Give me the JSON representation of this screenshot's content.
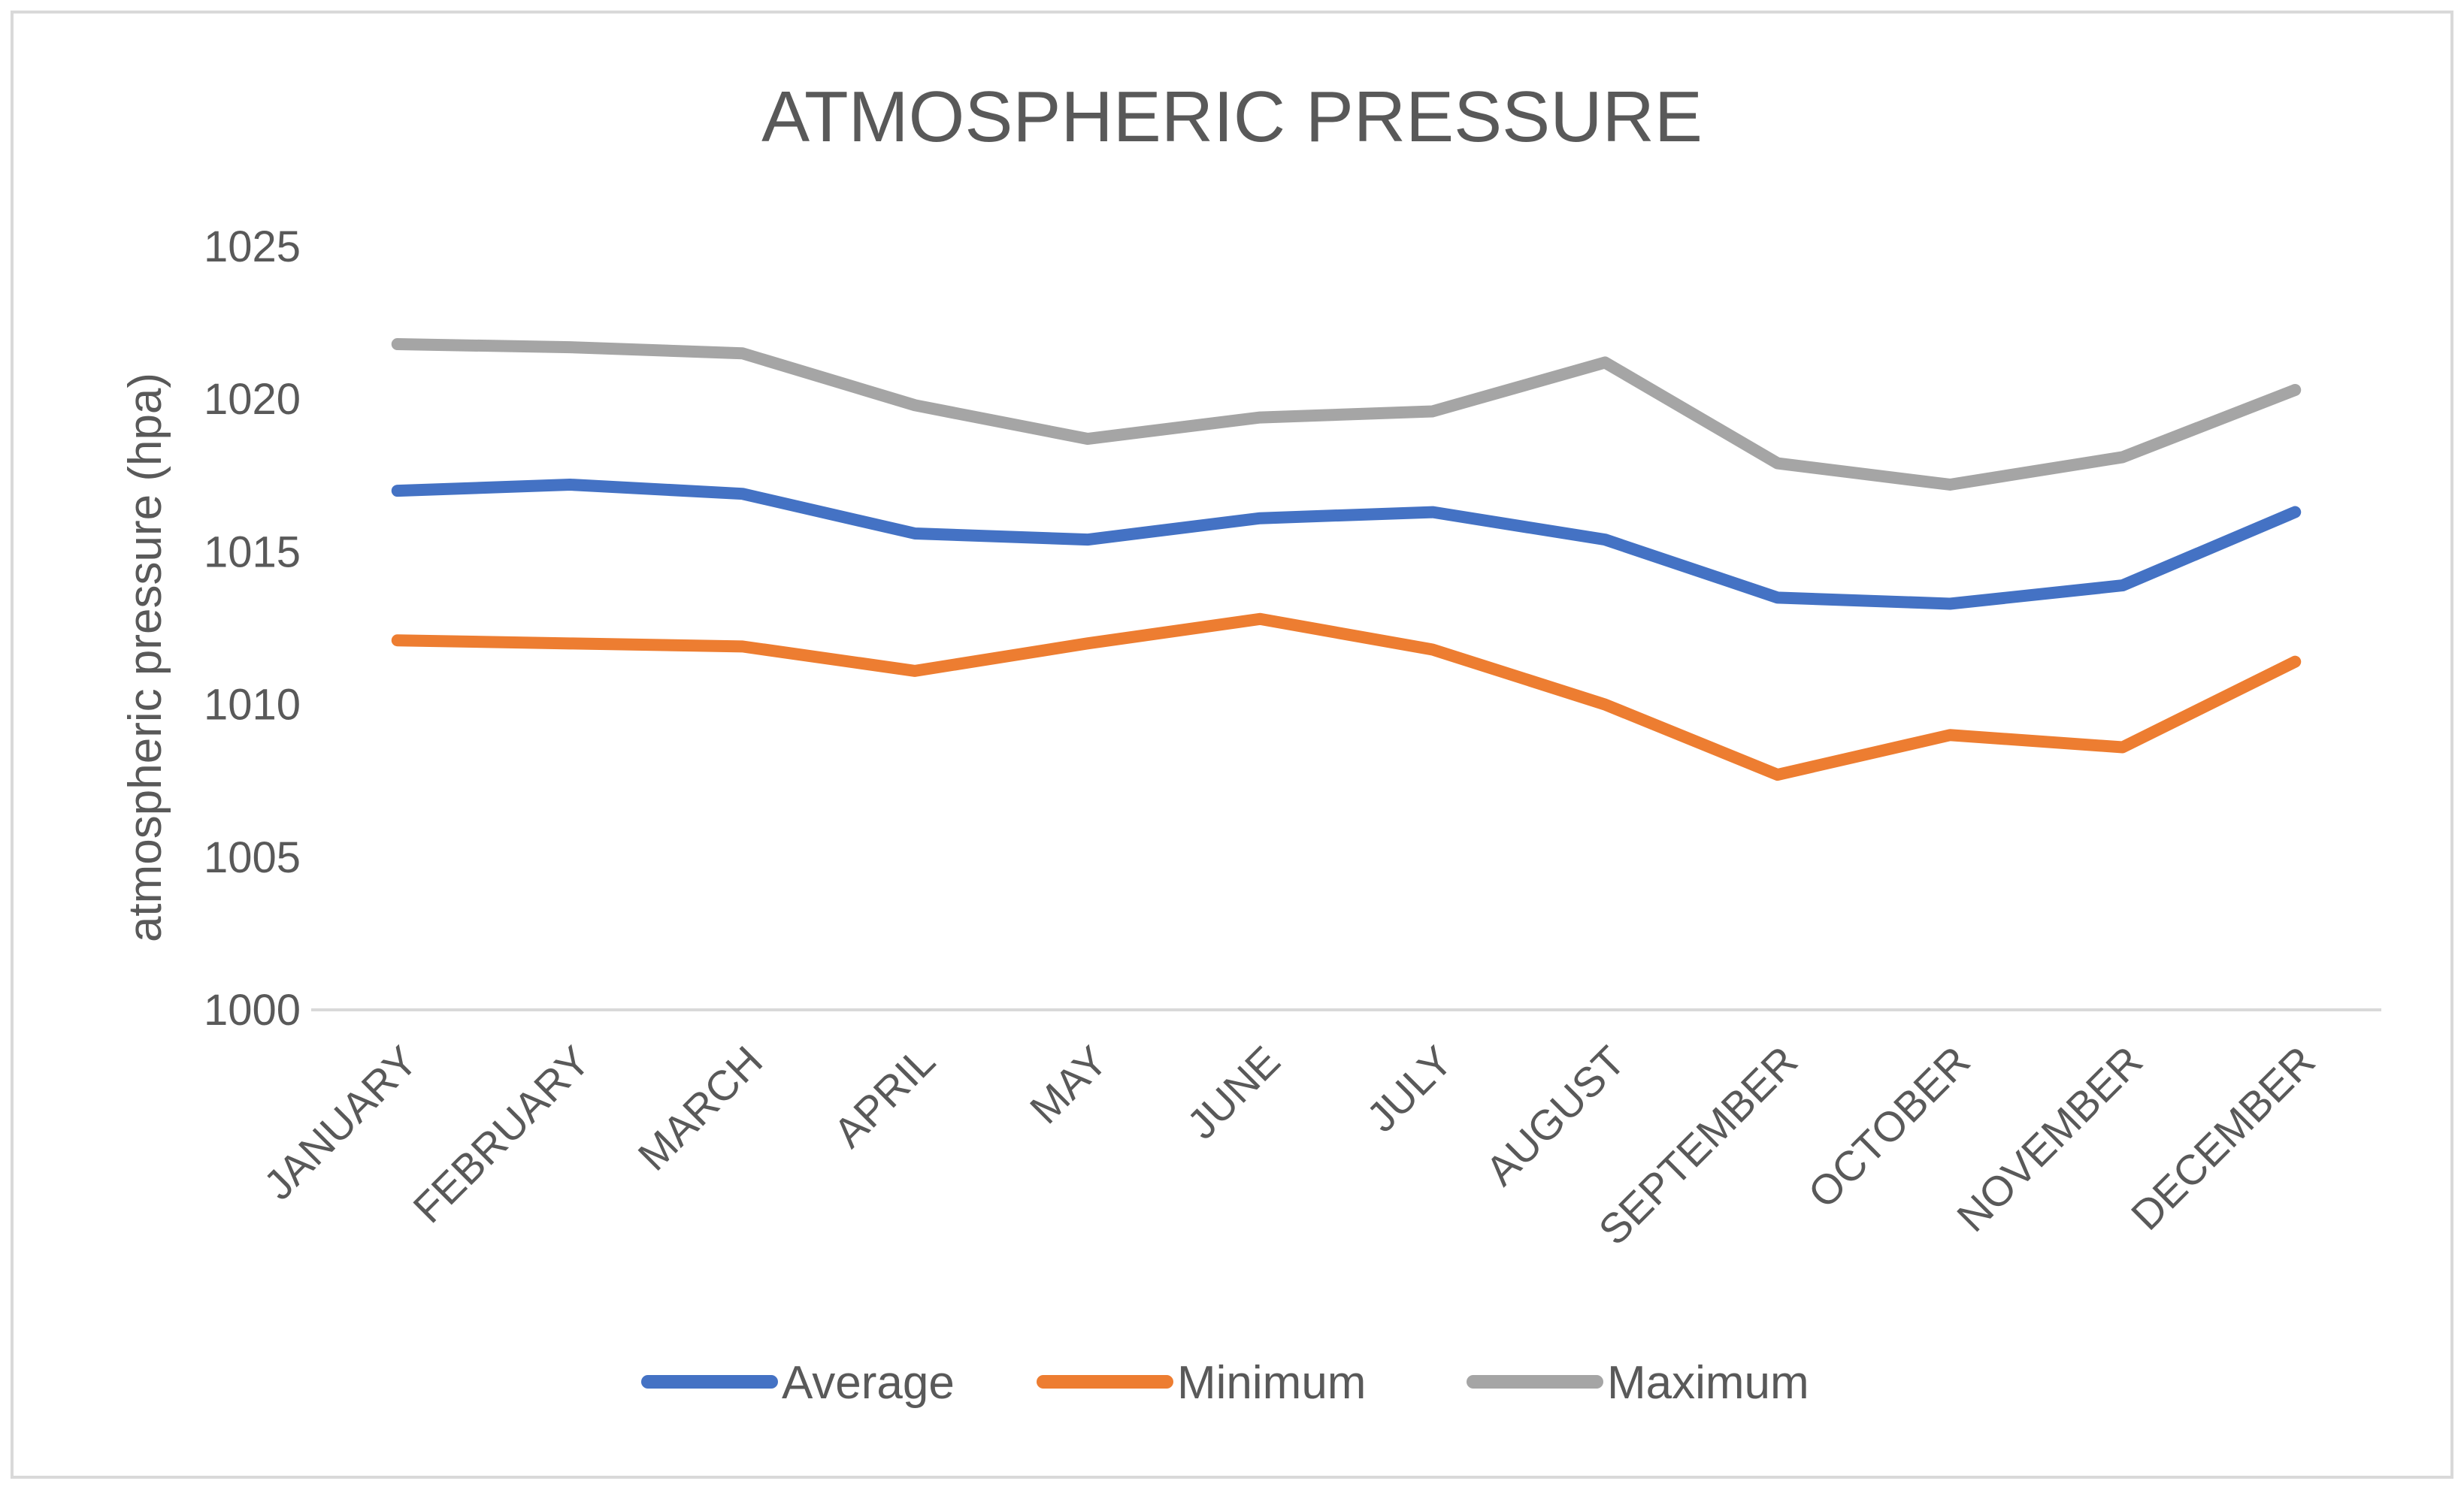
{
  "chart_data": {
    "type": "line",
    "title": "ATMOSPHERIC PRESSURE",
    "xlabel": "",
    "ylabel": "atmospheric pressure (hpa)",
    "ylim": [
      1000,
      1025
    ],
    "yticks": [
      "1000",
      "1005",
      "1010",
      "1015",
      "1020",
      "1025"
    ],
    "grid": "horizontal baseline only",
    "legend_position": "bottom",
    "categories": [
      "JANUARY",
      "FEBRUARY",
      "MARCH",
      "APRIL",
      "MAY",
      "JUNE",
      "JULY",
      "AUGUST",
      "SEPTEMBER",
      "OCTOBER",
      "NOVEMBER",
      "DECEMBER"
    ],
    "series": [
      {
        "name": "Average",
        "color": "#4472C4",
        "values": [
          1017.0,
          1017.2,
          1016.9,
          1015.6,
          1015.4,
          1016.1,
          1016.3,
          1015.4,
          1013.5,
          1013.3,
          1013.9,
          1016.3
        ]
      },
      {
        "name": "Minimum",
        "color": "#ED7D31",
        "values": [
          1012.1,
          1012.0,
          1011.9,
          1011.1,
          1012.0,
          1012.8,
          1011.8,
          1010.0,
          1007.7,
          1009.0,
          1008.6,
          1011.4
        ]
      },
      {
        "name": "Maximum",
        "color": "#A5A5A5",
        "values": [
          1021.8,
          1021.7,
          1021.5,
          1019.8,
          1018.7,
          1019.4,
          1019.6,
          1021.2,
          1017.9,
          1017.2,
          1018.1,
          1020.3
        ]
      }
    ]
  },
  "colors": {
    "title_text": "#595959",
    "axis_text": "#595959",
    "axis_line": "#D9D9D9",
    "border": "#D9D9D9"
  }
}
